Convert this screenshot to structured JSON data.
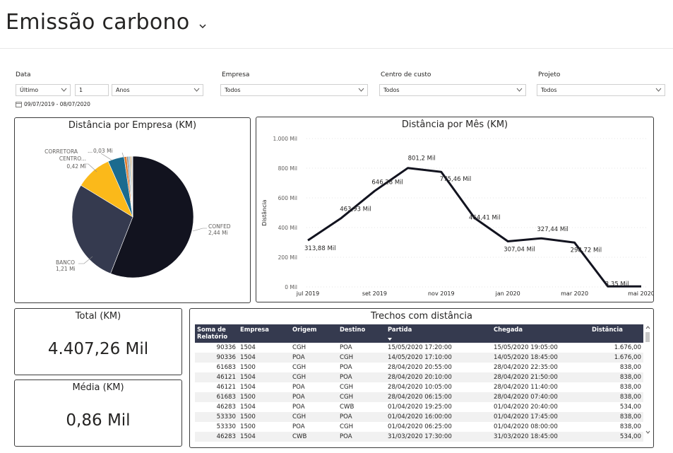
{
  "page": {
    "title": "Emissão carbono"
  },
  "filters": {
    "data": {
      "label": "Data",
      "mode": "Último",
      "amount": "1",
      "unit": "Anos",
      "range": "09/07/2019 - 08/07/2020"
    },
    "empresa": {
      "label": "Empresa",
      "value": "Todos"
    },
    "centro": {
      "label": "Centro de custo",
      "value": "Todos"
    },
    "projeto": {
      "label": "Projeto",
      "value": "Todos"
    }
  },
  "kpis": {
    "total": {
      "title": "Total (KM)",
      "value": "4.407,26 Mil"
    },
    "media": {
      "title": "Média (KM)",
      "value": "0,86 Mil"
    }
  },
  "chart_data": [
    {
      "type": "pie",
      "title": "Distância por Empresa (KM)",
      "slices": [
        {
          "label": "CONFED",
          "value_label": "2,44 Mi",
          "value": 2.44,
          "color": "#12131f"
        },
        {
          "label": "BANCO",
          "value_label": "1,21 Mi",
          "value": 1.21,
          "color": "#353a4f"
        },
        {
          "label": "CENTRO...",
          "value_label": "0,42 Mi",
          "value": 0.42,
          "color": "#fbb91a"
        },
        {
          "label": "CORRETORA",
          "value_label": "",
          "value": 0.19,
          "color": "#1b6b8f"
        },
        {
          "label": "...",
          "value_label": "0,03 Mi",
          "value": 0.03,
          "color": "#e07b2c"
        },
        {
          "label": "",
          "value_label": "",
          "value": 0.02,
          "color": "#8c8c8c"
        },
        {
          "label": "",
          "value_label": "",
          "value": 0.02,
          "color": "#9fc2d4"
        },
        {
          "label": "",
          "value_label": "",
          "value": 0.015,
          "color": "#c9a063"
        },
        {
          "label": "",
          "value_label": "",
          "value": 0.015,
          "color": "#d8d8d8"
        }
      ]
    },
    {
      "type": "line",
      "title": "Distância por Mês (KM)",
      "ylabel": "Distância",
      "ylim": [
        0,
        1000
      ],
      "yticks": [
        "0 Mil",
        "200 Mil",
        "400 Mil",
        "600 Mil",
        "800 Mil",
        "1.000 Mil"
      ],
      "xticks": [
        "jul 2019",
        "set 2019",
        "nov 2019",
        "jan 2020",
        "mar 2020",
        "mai 2020"
      ],
      "x": [
        "jul 2019",
        "ago 2019",
        "set 2019",
        "out 2019",
        "nov 2019",
        "dez 2019",
        "jan 2020",
        "fev 2020",
        "mar 2020",
        "abr 2020",
        "mai 2020"
      ],
      "values": [
        313.88,
        463.93,
        646.28,
        801.2,
        775.46,
        464.41,
        307.04,
        327.44,
        298.72,
        3.35,
        3.35
      ],
      "labels": [
        "313,88 Mil",
        "463,93 Mil",
        "646,28 Mil",
        "801,2 Mil",
        "775,46 Mil",
        "464,41 Mil",
        "307,04 Mil",
        "327,44 Mil",
        "298,72 Mil",
        "3,35 Mil",
        ""
      ],
      "grid": true,
      "color": "#12131f"
    }
  ],
  "table": {
    "title": "Trechos com distância",
    "columns": [
      "Soma de Relatório",
      "Empresa",
      "Origem",
      "Destino",
      "Partida",
      "Chegada",
      "Distância"
    ],
    "rows": [
      [
        "90336",
        "1504",
        "CGH",
        "POA",
        "15/05/2020 17:20:00",
        "15/05/2020 19:05:00",
        "1.676,00"
      ],
      [
        "90336",
        "1504",
        "POA",
        "CGH",
        "14/05/2020 17:10:00",
        "14/05/2020 18:45:00",
        "1.676,00"
      ],
      [
        "61683",
        "1500",
        "CGH",
        "POA",
        "28/04/2020 20:55:00",
        "28/04/2020 22:35:00",
        "838,00"
      ],
      [
        "46121",
        "1504",
        "CGH",
        "POA",
        "28/04/2020 20:10:00",
        "28/04/2020 21:50:00",
        "838,00"
      ],
      [
        "46121",
        "1504",
        "POA",
        "CGH",
        "28/04/2020 10:05:00",
        "28/04/2020 11:40:00",
        "838,00"
      ],
      [
        "61683",
        "1500",
        "POA",
        "CGH",
        "28/04/2020 06:15:00",
        "28/04/2020 07:40:00",
        "838,00"
      ],
      [
        "46283",
        "1504",
        "POA",
        "CWB",
        "01/04/2020 19:25:00",
        "01/04/2020 20:40:00",
        "534,00"
      ],
      [
        "53330",
        "1500",
        "CGH",
        "POA",
        "01/04/2020 16:00:00",
        "01/04/2020 17:45:00",
        "838,00"
      ],
      [
        "53330",
        "1500",
        "POA",
        "CGH",
        "01/04/2020 06:25:00",
        "01/04/2020 08:00:00",
        "838,00"
      ],
      [
        "46283",
        "1504",
        "CWB",
        "POA",
        "31/03/2020 17:30:00",
        "31/03/2020 18:45:00",
        "534,00"
      ]
    ]
  }
}
